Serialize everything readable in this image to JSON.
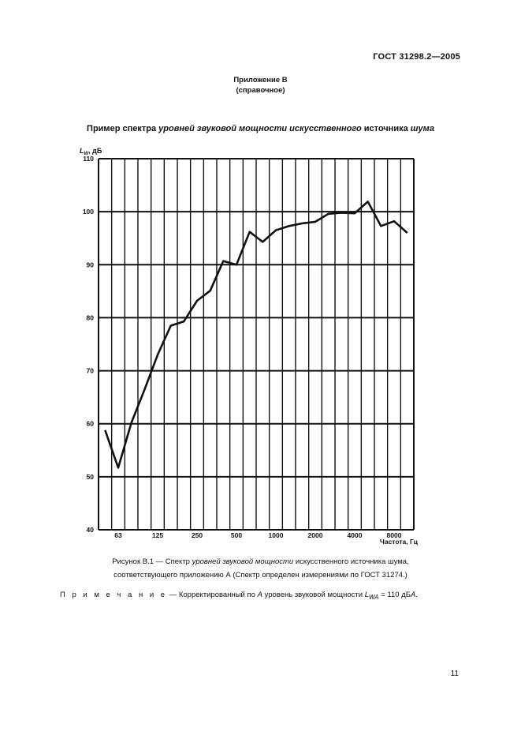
{
  "header": {
    "doc_id": "ГОСТ 31298.2—2005"
  },
  "annex": {
    "title": "Приложение В",
    "subtitle": "(справочное)"
  },
  "figure_title": {
    "part1": "Пример спектра ",
    "part2_italic": "уровней звуковой мощности искусственного",
    "part3": " источника ",
    "part4_italic": "шума"
  },
  "chart_data": {
    "type": "line",
    "ylabel_symbol": "L",
    "ylabel_sub": "W",
    "ylabel_unit": ", дБ",
    "xlabel": "Частота, Гц",
    "ylim": [
      40,
      110
    ],
    "y_ticks": [
      40,
      50,
      60,
      70,
      80,
      90,
      100,
      110
    ],
    "x_tick_labels": [
      "63",
      "125",
      "250",
      "500",
      "1000",
      "2000",
      "4000",
      "8000"
    ],
    "grid": true,
    "x_bands": [
      "50",
      "63",
      "80",
      "100",
      "125",
      "160",
      "200",
      "250",
      "315",
      "400",
      "500",
      "630",
      "800",
      "1000",
      "1250",
      "1600",
      "2000",
      "2500",
      "3150",
      "4000",
      "5000",
      "6300",
      "8000",
      "10000"
    ],
    "series": [
      {
        "values": [
          58.8,
          51.7,
          60.2,
          66.4,
          73.0,
          78.5,
          79.3,
          83.2,
          85.1,
          90.7,
          90.0,
          96.2,
          94.3,
          96.5,
          97.3,
          97.8,
          98.1,
          99.6,
          99.8,
          99.7,
          101.9,
          97.3,
          98.2,
          96.0
        ]
      }
    ]
  },
  "caption": {
    "line1_part1": "Рисунок В.1 — Спектр ",
    "line1_italic": "уровней звуковой мощности",
    "line1_part2": " искусственного источника шума,",
    "line2": "соответствующего приложению А (Спектр определен измерениями по ГОСТ 31274.)"
  },
  "note": {
    "label": "П р и м е ч а н и е",
    "text1": " — Корректированный по ",
    "italic_a": "А",
    "text2": " уровень звуковой мощности ",
    "sym": "L",
    "sub": "WA",
    "text3": " = 110 дБ",
    "italic_a2": "А",
    "text4": "."
  },
  "page_number": "11"
}
